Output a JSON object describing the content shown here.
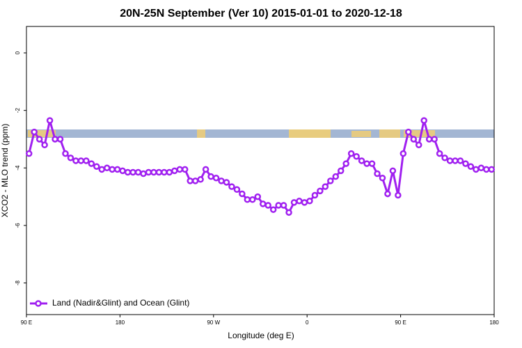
{
  "chart_data": {
    "type": "line",
    "title": "20N-25N September (Ver 10)   2015-01-01 to 2020-12-18",
    "x_label": "Longitude (deg E)",
    "y_label": "XCO2 - MLO trend (ppm)",
    "legend_position": "bottom-left",
    "xlim": [
      90,
      540
    ],
    "ylim": [
      -9.1,
      0.92
    ],
    "xticks": [
      {
        "value": 90,
        "label": "90 E"
      },
      180,
      {
        "value": 270,
        "label": "90 W"
      },
      {
        "value": 360,
        "label": "0"
      },
      {
        "value": 450,
        "label": "90 E"
      },
      {
        "value": 540,
        "label": "180"
      }
    ],
    "yticks": [
      0,
      -2,
      -4,
      -6,
      -8
    ],
    "x": [
      92.5,
      97.5,
      102.5,
      107.5,
      112.5,
      117.5,
      122.5,
      127.5,
      132.5,
      137.5,
      142.5,
      147.5,
      152.5,
      157.5,
      162.5,
      167.5,
      172.5,
      177.5,
      182.5,
      187.5,
      192.5,
      197.5,
      202.5,
      207.5,
      212.5,
      217.5,
      222.5,
      227.5,
      232.5,
      237.5,
      242.5,
      247.5,
      252.5,
      257.5,
      262.5,
      267.5,
      272.5,
      277.5,
      282.5,
      287.5,
      292.5,
      297.5,
      302.5,
      307.5,
      312.5,
      317.5,
      322.5,
      327.5,
      332.5,
      337.5,
      342.5,
      347.5,
      352.5,
      357.5,
      362.5,
      367.5,
      372.5,
      377.5,
      382.5,
      387.5,
      392.5,
      397.5,
      402.5,
      407.5,
      412.5,
      417.5,
      422.5,
      427.5,
      432.5,
      437.5,
      442.5,
      447.5,
      452.5,
      457.5,
      462.5,
      467.5,
      472.5,
      477.5,
      482.5,
      487.5,
      492.5,
      497.5,
      502.5,
      507.5,
      512.5,
      517.5,
      522.5,
      527.5,
      532.5,
      537.5
    ],
    "series": [
      {
        "name": "Land (Nadir&Glint) and Ocean (Glint)",
        "color": "#a020f0",
        "values": [
          -3.5,
          -2.75,
          -3.0,
          -3.2,
          -2.35,
          -3.0,
          -3.0,
          -3.5,
          -3.65,
          -3.75,
          -3.75,
          -3.75,
          -3.85,
          -3.95,
          -4.05,
          -4.0,
          -4.05,
          -4.05,
          -4.1,
          -4.15,
          -4.15,
          -4.15,
          -4.2,
          -4.15,
          -4.15,
          -4.15,
          -4.15,
          -4.15,
          -4.1,
          -4.05,
          -4.05,
          -4.45,
          -4.45,
          -4.4,
          -4.05,
          -4.3,
          -4.35,
          -4.45,
          -4.5,
          -4.65,
          -4.75,
          -4.9,
          -5.1,
          -5.1,
          -5.0,
          -5.25,
          -5.3,
          -5.45,
          -5.3,
          -5.3,
          -5.55,
          -5.2,
          -5.15,
          -5.2,
          -5.15,
          -4.95,
          -4.8,
          -4.65,
          -4.45,
          -4.3,
          -4.1,
          -3.85,
          -3.5,
          -3.6,
          -3.75,
          -3.85,
          -3.85,
          -4.2,
          -4.35,
          -4.9,
          -4.1,
          -4.95,
          -3.5,
          -2.75,
          -3.0,
          -3.2,
          -2.35,
          -3.0,
          -3.0,
          -3.5,
          -3.65,
          -3.75,
          -3.75,
          -3.75,
          -3.85,
          -3.95,
          -4.05,
          -4.0,
          -4.05,
          -4.05
        ]
      }
    ]
  }
}
